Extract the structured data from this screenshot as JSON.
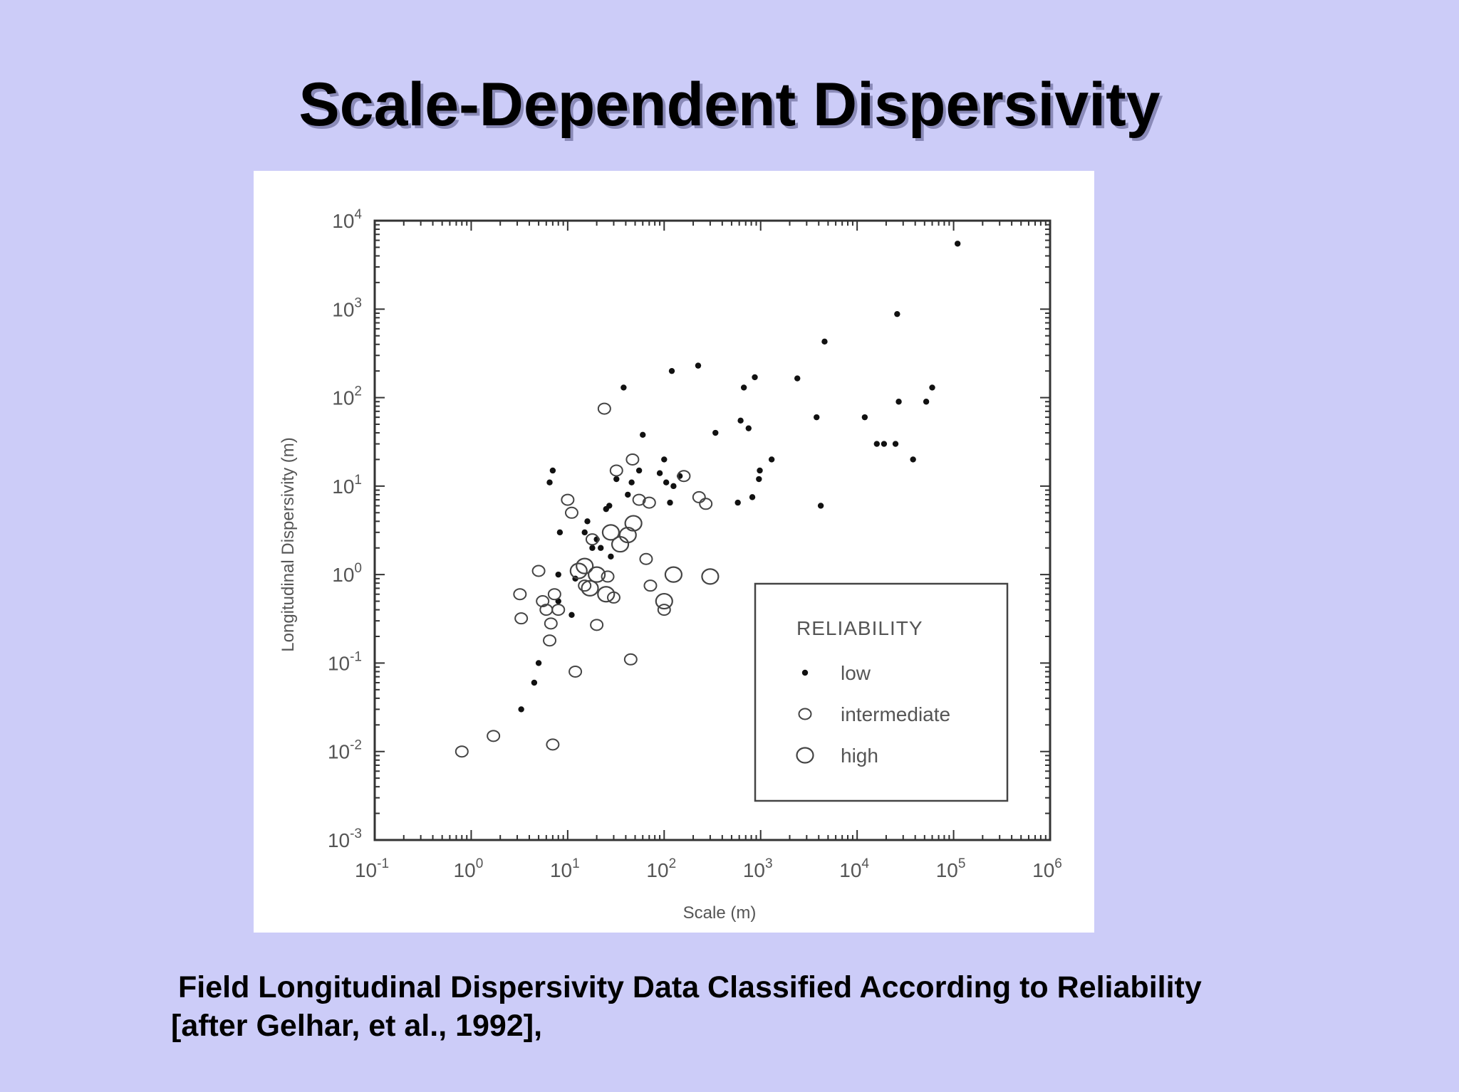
{
  "slide": {
    "title": "Scale-Dependent Dispersivity",
    "caption_line1": "Field Longitudinal Dispersivity Data Classified According to Reliability",
    "caption_line2": "[after Gelhar, et al., 1992],"
  },
  "chart_data": {
    "type": "scatter",
    "xlabel": "Scale (m)",
    "ylabel": "Longitudinal Dispersivity (m)",
    "xscale": "log",
    "yscale": "log",
    "xlim": [
      0.1,
      1000000
    ],
    "ylim": [
      0.001,
      10000
    ],
    "x_ticks": [
      {
        "value": 0.1,
        "base": "10",
        "exp": "-1"
      },
      {
        "value": 1,
        "base": "10",
        "exp": "0"
      },
      {
        "value": 10,
        "base": "10",
        "exp": "1"
      },
      {
        "value": 100,
        "base": "10",
        "exp": "2"
      },
      {
        "value": 1000,
        "base": "10",
        "exp": "3"
      },
      {
        "value": 10000,
        "base": "10",
        "exp": "4"
      },
      {
        "value": 100000,
        "base": "10",
        "exp": "5"
      },
      {
        "value": 1000000,
        "base": "10",
        "exp": "6"
      }
    ],
    "y_ticks": [
      {
        "value": 0.001,
        "base": "10",
        "exp": "-3"
      },
      {
        "value": 0.01,
        "base": "10",
        "exp": "-2"
      },
      {
        "value": 0.1,
        "base": "10",
        "exp": "-1"
      },
      {
        "value": 1,
        "base": "10",
        "exp": "0"
      },
      {
        "value": 10,
        "base": "10",
        "exp": "1"
      },
      {
        "value": 100,
        "base": "10",
        "exp": "2"
      },
      {
        "value": 1000,
        "base": "10",
        "exp": "3"
      },
      {
        "value": 10000,
        "base": "10",
        "exp": "4"
      }
    ],
    "grid": false,
    "legend": {
      "title": "RELIABILITY",
      "placement": "bottom-right",
      "entries": [
        "low",
        "intermediate",
        "high"
      ]
    },
    "series": [
      {
        "name": "low",
        "marker": "dot",
        "points": [
          [
            3.3,
            0.03
          ],
          [
            4.5,
            0.06
          ],
          [
            5,
            0.1
          ],
          [
            6.5,
            11
          ],
          [
            7,
            15
          ],
          [
            8.3,
            3
          ],
          [
            8,
            1
          ],
          [
            8,
            0.5
          ],
          [
            11,
            0.35
          ],
          [
            12,
            0.9
          ],
          [
            15,
            3
          ],
          [
            16,
            4
          ],
          [
            18,
            2
          ],
          [
            20,
            2.5
          ],
          [
            22,
            2
          ],
          [
            25,
            5.5
          ],
          [
            27,
            6
          ],
          [
            28,
            1.6
          ],
          [
            32,
            12
          ],
          [
            38,
            130
          ],
          [
            42,
            8
          ],
          [
            46,
            11
          ],
          [
            55,
            15
          ],
          [
            60,
            38
          ],
          [
            90,
            14
          ],
          [
            100,
            20
          ],
          [
            105,
            11
          ],
          [
            115,
            6.5
          ],
          [
            120,
            200
          ],
          [
            125,
            10
          ],
          [
            145,
            13
          ],
          [
            225,
            230
          ],
          [
            340,
            40
          ],
          [
            580,
            6.5
          ],
          [
            620,
            55
          ],
          [
            670,
            130
          ],
          [
            750,
            45
          ],
          [
            820,
            7.5
          ],
          [
            870,
            170
          ],
          [
            960,
            12
          ],
          [
            980,
            15
          ],
          [
            1300,
            20
          ],
          [
            2400,
            165
          ],
          [
            3800,
            60
          ],
          [
            4200,
            6
          ],
          [
            4600,
            430
          ],
          [
            12000,
            60
          ],
          [
            16000,
            30
          ],
          [
            19000,
            30
          ],
          [
            25000,
            30
          ],
          [
            27000,
            90
          ],
          [
            26000,
            880
          ],
          [
            38000,
            20
          ],
          [
            52000,
            90
          ],
          [
            60000,
            130
          ],
          [
            110000,
            5500
          ]
        ]
      },
      {
        "name": "intermediate",
        "marker": "open-circle-small",
        "points": [
          [
            0.8,
            0.01
          ],
          [
            1.7,
            0.015
          ],
          [
            3.2,
            0.6
          ],
          [
            3.3,
            0.32
          ],
          [
            5,
            1.1
          ],
          [
            5.5,
            0.5
          ],
          [
            6,
            0.4
          ],
          [
            6.5,
            0.18
          ],
          [
            6.7,
            0.28
          ],
          [
            7,
            0.012
          ],
          [
            7.3,
            0.6
          ],
          [
            8,
            0.4
          ],
          [
            10,
            7
          ],
          [
            11,
            5
          ],
          [
            12,
            0.08
          ],
          [
            15,
            0.75
          ],
          [
            18,
            2.5
          ],
          [
            20,
            0.27
          ],
          [
            24,
            75
          ],
          [
            26,
            0.95
          ],
          [
            30,
            0.55
          ],
          [
            32,
            15
          ],
          [
            45,
            0.11
          ],
          [
            47,
            20
          ],
          [
            55,
            7
          ],
          [
            65,
            1.5
          ],
          [
            70,
            6.5
          ],
          [
            72,
            0.75
          ],
          [
            100,
            0.4
          ],
          [
            160,
            13
          ],
          [
            230,
            7.5
          ],
          [
            270,
            6.3
          ]
        ]
      },
      {
        "name": "high",
        "marker": "open-circle-large",
        "points": [
          [
            13,
            1.1
          ],
          [
            15,
            1.25
          ],
          [
            17,
            0.7
          ],
          [
            20,
            1
          ],
          [
            25,
            0.6
          ],
          [
            28,
            3
          ],
          [
            35,
            2.2
          ],
          [
            42,
            2.8
          ],
          [
            48,
            3.8
          ],
          [
            100,
            0.5
          ],
          [
            125,
            1
          ],
          [
            300,
            0.95
          ]
        ]
      }
    ]
  }
}
